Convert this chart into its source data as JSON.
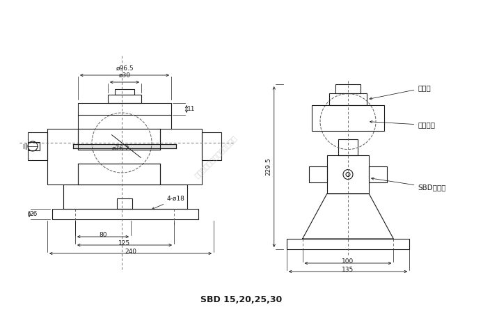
{
  "title": "SBD 15,20,25,30",
  "bg_color": "#ffffff",
  "line_color": "#1a1a1a",
  "dash_color": "#666666",
  "dim_color": "#1a1a1a",
  "font_size_dim": 6.5,
  "font_size_title": 9,
  "font_size_label": 7.5,
  "watermark": "广州众鑫自动化科技有限公司",
  "labels": {
    "chengya_tou": "承压头",
    "jiazai_gangqiu": "加载钐球",
    "sbd_sensor": "SBD传感器"
  },
  "dims_left": {
    "phi965": "ø96.5",
    "phi30": "ø30",
    "t11": "11",
    "phi762": "ø76.2",
    "d4phi18": "4-ø18",
    "d26": "26",
    "d80": "80",
    "d125": "125",
    "d240": "240"
  },
  "dims_right": {
    "d2295": "229.5",
    "d100": "100",
    "d135": "135"
  }
}
